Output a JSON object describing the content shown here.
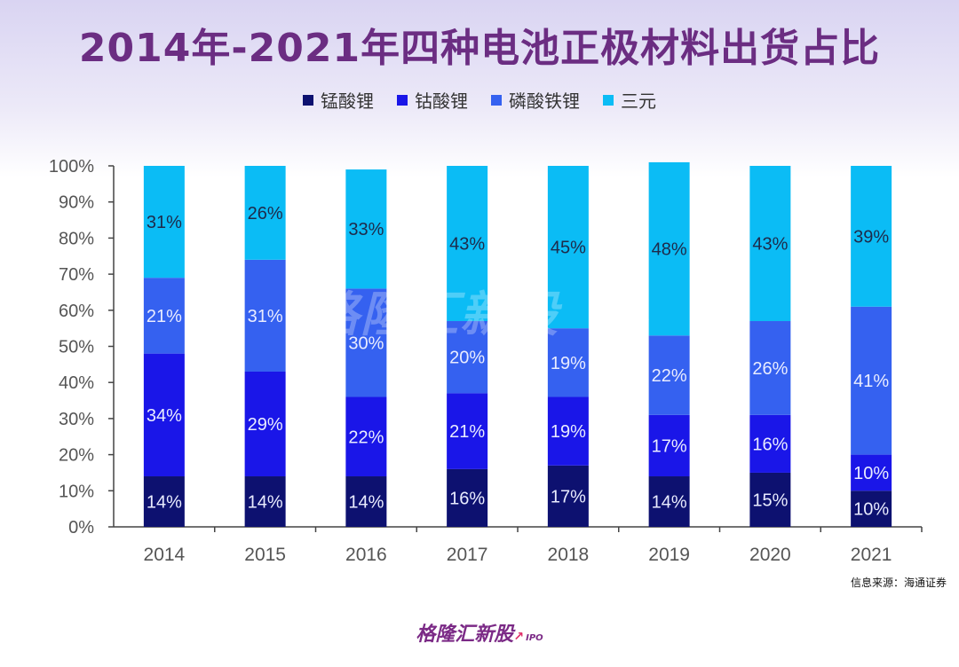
{
  "title": "2014年-2021年四种电池正极材料出货占比",
  "legend": [
    {
      "label": "锰酸锂",
      "color": "#0d1170"
    },
    {
      "label": "钴酸锂",
      "color": "#1a16e8"
    },
    {
      "label": "磷酸铁锂",
      "color": "#3561f0"
    },
    {
      "label": "三元",
      "color": "#0bbcf5"
    }
  ],
  "chart_data": {
    "type": "bar",
    "stacked": true,
    "categories": [
      "2014",
      "2015",
      "2016",
      "2017",
      "2018",
      "2019",
      "2020",
      "2021"
    ],
    "series": [
      {
        "name": "锰酸锂",
        "values": [
          14,
          14,
          14,
          16,
          17,
          14,
          15,
          10
        ],
        "labels": [
          "14%",
          "14%",
          "14%",
          "16%",
          "17%",
          "14%",
          "15%",
          "10%"
        ]
      },
      {
        "name": "钴酸锂",
        "values": [
          34,
          29,
          22,
          21,
          19,
          17,
          16,
          10
        ],
        "labels": [
          "34%",
          "29%",
          "22%",
          "21%",
          "19%",
          "17%",
          "16%",
          "10%"
        ]
      },
      {
        "name": "磷酸铁锂",
        "values": [
          21,
          31,
          30,
          20,
          19,
          22,
          26,
          41
        ],
        "labels": [
          "21%",
          "31%",
          "30%",
          "20%",
          "19%",
          "22%",
          "26%",
          "41%"
        ]
      },
      {
        "name": "三元",
        "values": [
          31,
          26,
          33,
          43,
          45,
          48,
          43,
          39
        ],
        "labels": [
          "31%",
          "26%",
          "33%",
          "43%",
          "45%",
          "48%",
          "43%",
          "39%"
        ]
      }
    ],
    "y_ticks": [
      "0%",
      "10%",
      "20%",
      "30%",
      "40%",
      "50%",
      "60%",
      "70%",
      "80%",
      "90%",
      "100%"
    ],
    "ylim": [
      0,
      100
    ],
    "colors": [
      "#0d1170",
      "#1a16e8",
      "#3561f0",
      "#0bbcf5"
    ]
  },
  "watermark": {
    "text": "格隆汇新股",
    "sub": "IPO"
  },
  "source": "信息来源：海通证券",
  "footer": {
    "brand": "格隆汇新股",
    "sub": "IPO"
  }
}
